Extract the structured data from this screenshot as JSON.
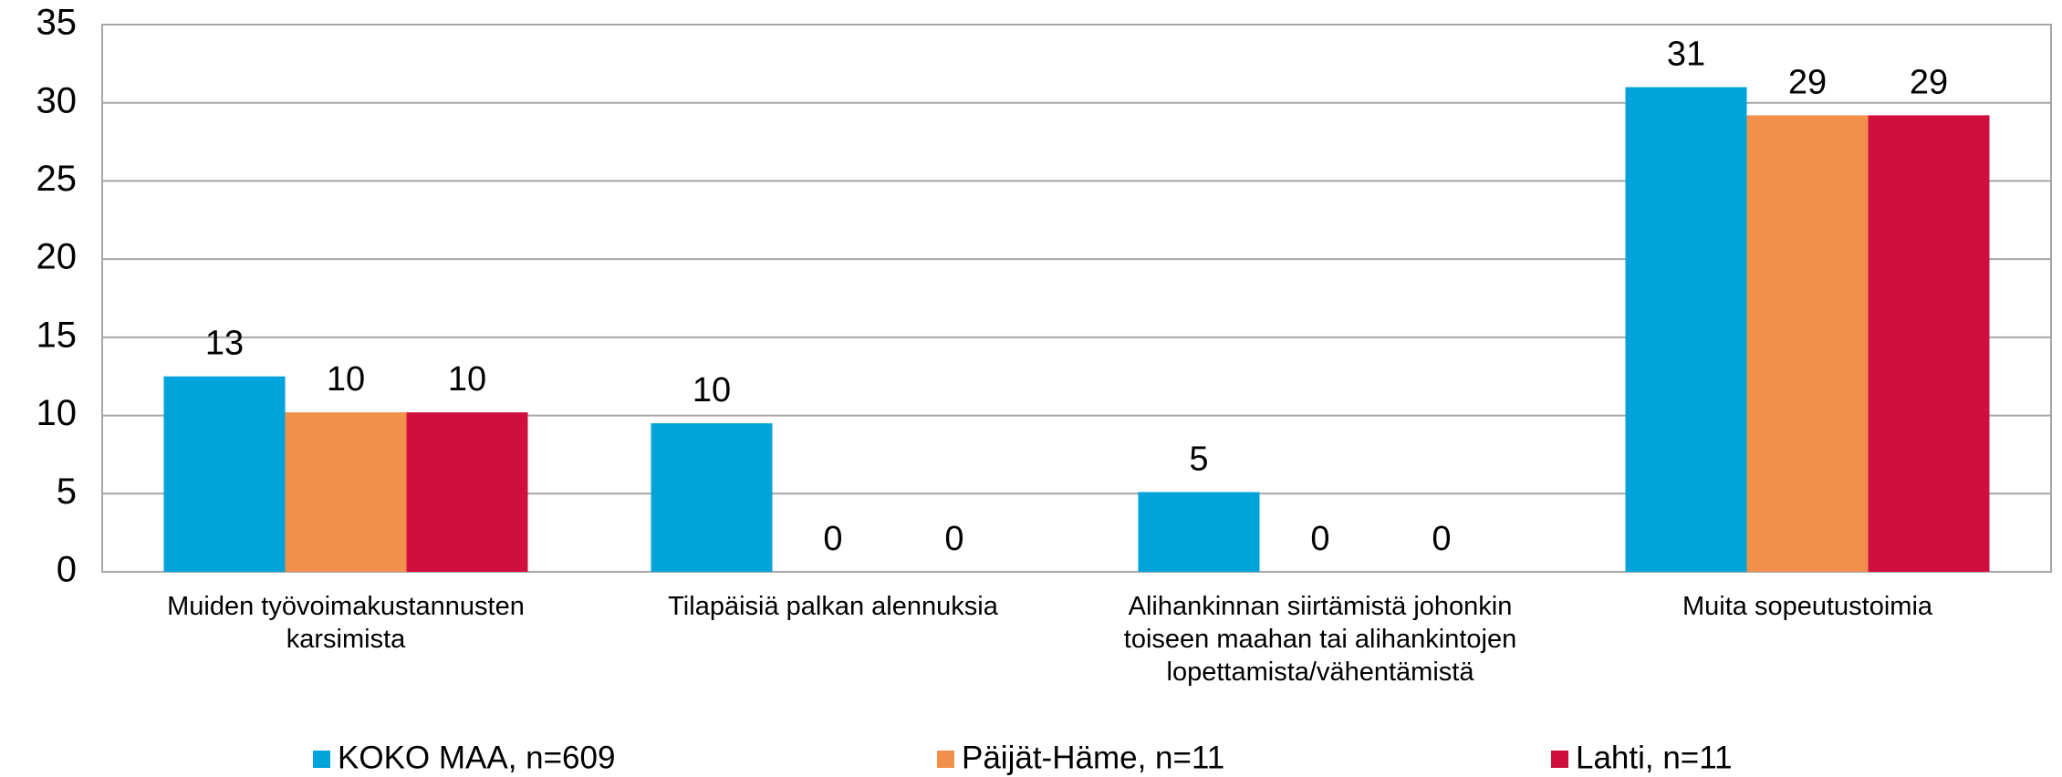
{
  "chart_data": {
    "type": "bar",
    "categories": [
      "Muiden työvoimakustannusten karsimista",
      "Tilapäisiä palkan alennuksia",
      "Alihankinnan siirtämistä johonkin toiseen maahan tai alihankintojen lopettamista/vähentämistä",
      "Muita sopeutustoimia"
    ],
    "series": [
      {
        "name": "KOKO MAA, n=609",
        "color": "#00a3da",
        "values": [
          12.5,
          9.5,
          5.1,
          31.0
        ],
        "value_labels": [
          "13",
          "10",
          "5",
          "31"
        ]
      },
      {
        "name": "Päijät-Häme, n=11",
        "color": "#f0904a",
        "values": [
          10.2,
          0,
          0,
          29.2
        ],
        "value_labels": [
          "10",
          "0",
          "0",
          "29"
        ]
      },
      {
        "name": "Lahti, n=11",
        "color": "#cf0f3e",
        "values": [
          10.2,
          0,
          0,
          29.2
        ],
        "value_labels": [
          "10",
          "0",
          "0",
          "29"
        ]
      }
    ],
    "ylim": [
      0,
      35
    ],
    "yticks": [
      0,
      5,
      10,
      15,
      20,
      25,
      30,
      35
    ],
    "grid": true,
    "legend": "bottom"
  }
}
